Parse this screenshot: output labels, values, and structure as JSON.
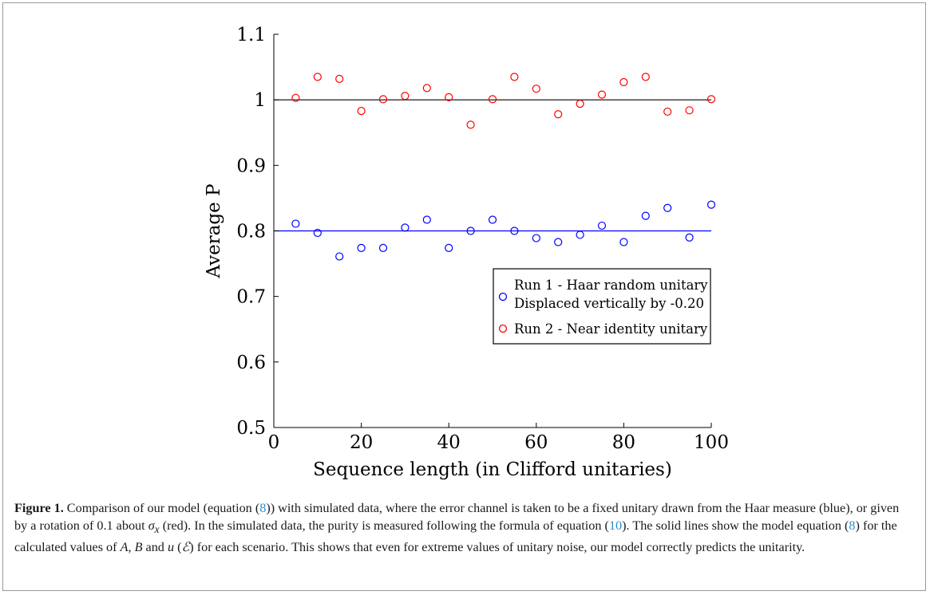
{
  "chart_data": {
    "type": "scatter",
    "xlabel": "Sequence length (in Clifford unitaries)",
    "ylabel": "Average P",
    "xlim": [
      0,
      100
    ],
    "ylim": [
      0.5,
      1.1
    ],
    "xticks": [
      "0",
      "20",
      "40",
      "60",
      "80",
      "100"
    ],
    "yticks": [
      "0.5",
      "0.6",
      "0.7",
      "0.8",
      "0.9",
      "1",
      "1.1"
    ],
    "legend_position": "center-right",
    "series": [
      {
        "name": "Run 1 - Haar random unitary",
        "name_line2": "Displaced vertically by -0.20",
        "color": "#0000ff",
        "marker": "open-circle",
        "x": [
          5,
          10,
          15,
          20,
          25,
          30,
          35,
          40,
          45,
          50,
          55,
          60,
          65,
          70,
          75,
          80,
          85,
          90,
          95,
          100
        ],
        "y": [
          0.811,
          0.797,
          0.761,
          0.774,
          0.774,
          0.805,
          0.817,
          0.774,
          0.8,
          0.817,
          0.8,
          0.789,
          0.783,
          0.794,
          0.808,
          0.783,
          0.823,
          0.835,
          0.79,
          0.84
        ],
        "model_line": 0.8
      },
      {
        "name": "Run 2 - Near identity unitary",
        "color": "#ff0000",
        "marker": "open-circle",
        "x": [
          5,
          10,
          15,
          20,
          25,
          30,
          35,
          40,
          45,
          50,
          55,
          60,
          65,
          70,
          75,
          80,
          85,
          90,
          95,
          100
        ],
        "y": [
          1.003,
          1.035,
          1.032,
          0.983,
          1.001,
          1.006,
          1.018,
          1.004,
          0.962,
          1.001,
          1.035,
          1.017,
          0.978,
          0.994,
          1.008,
          1.027,
          1.035,
          0.982,
          0.984,
          1.001
        ],
        "model_line": 1.0
      }
    ],
    "model_line_color_black": "#000000"
  },
  "caption": {
    "label": "Figure 1.",
    "part1": " Comparison of our model (equation (",
    "ref8a": "8",
    "part2": ")) with simulated data, where the error channel is taken to be a fixed unitary drawn from the Haar measure (blue), or given by a rotation of 0.1 about ",
    "sigma": "σ",
    "sigma_sub": "x",
    "part3": " (red). In the simulated data, the purity is measured following the formula of equation (",
    "ref10": "10",
    "part4": "). The solid lines show the model equation (",
    "ref8b": "8",
    "part5": ") for the calculated values of ",
    "varA": "A",
    "sep1": ", ",
    "varB": "B",
    "part6": " and ",
    "varU": "u",
    "part7": " (",
    "varE": "ℰ",
    "part8": ") for each scenario. This shows that even for extreme values of unitary noise, our model correctly predicts the unitarity."
  }
}
